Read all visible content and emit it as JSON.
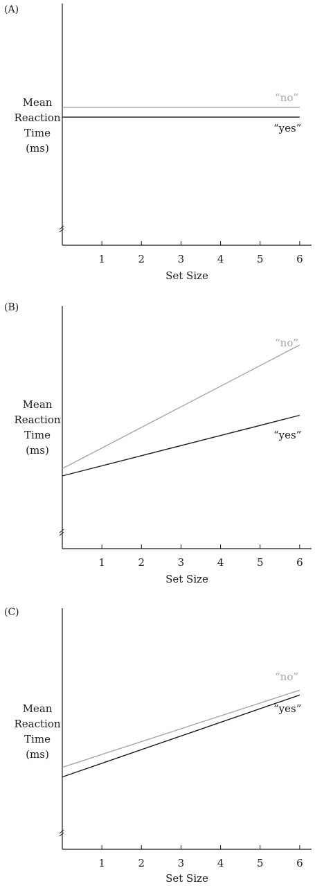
{
  "chart_data": [
    {
      "type": "line",
      "panel_label": "(A)",
      "ylabel_lines": [
        "Mean",
        "Reaction",
        "Time",
        "(ms)"
      ],
      "xlabel": "Set Size",
      "x_ticks": [
        "1",
        "2",
        "3",
        "4",
        "5",
        "6"
      ],
      "xlim": [
        0,
        6.3
      ],
      "ylim": [
        0,
        100
      ],
      "y_axis_break": true,
      "series": [
        {
          "name": "“no”",
          "color": "#a6a6a6",
          "x": [
            0,
            6
          ],
          "y": [
            57,
            57
          ]
        },
        {
          "name": "“yes”",
          "color": "#1a1a1a",
          "x": [
            0,
            6
          ],
          "y": [
            53,
            53
          ]
        }
      ]
    },
    {
      "type": "line",
      "panel_label": "(B)",
      "ylabel_lines": [
        "Mean",
        "Reaction",
        "Time",
        "(ms)"
      ],
      "xlabel": "Set Size",
      "x_ticks": [
        "1",
        "2",
        "3",
        "4",
        "5",
        "6"
      ],
      "xlim": [
        0,
        6.3
      ],
      "ylim": [
        0,
        100
      ],
      "y_axis_break": true,
      "series": [
        {
          "name": "“no”",
          "color": "#a6a6a6",
          "x": [
            0,
            6
          ],
          "y": [
            33,
            84
          ]
        },
        {
          "name": "“yes”",
          "color": "#1a1a1a",
          "x": [
            0,
            6
          ],
          "y": [
            30,
            55
          ]
        }
      ]
    },
    {
      "type": "line",
      "panel_label": "(C)",
      "ylabel_lines": [
        "Mean",
        "Reaction",
        "Time",
        "(ms)"
      ],
      "xlabel": "Set Size",
      "x_ticks": [
        "1",
        "2",
        "3",
        "4",
        "5",
        "6"
      ],
      "xlim": [
        0,
        6.3
      ],
      "ylim": [
        0,
        100
      ],
      "y_axis_break": true,
      "series": [
        {
          "name": "“no”",
          "color": "#a6a6a6",
          "x": [
            0,
            6
          ],
          "y": [
            34,
            66
          ]
        },
        {
          "name": "“yes”",
          "color": "#1a1a1a",
          "x": [
            0,
            6
          ],
          "y": [
            30,
            64
          ]
        }
      ]
    }
  ]
}
